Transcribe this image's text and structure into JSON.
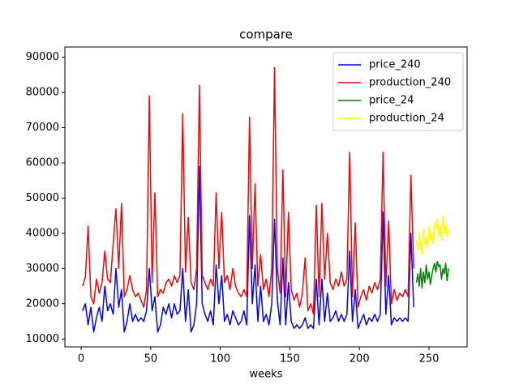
{
  "chart_data": {
    "type": "line",
    "title": "compare",
    "xlabel": "weeks",
    "xlim": [
      -11.7,
      277.4
    ],
    "ylim": [
      7760,
      92900
    ],
    "xticks": [
      0,
      50,
      100,
      150,
      200,
      250
    ],
    "yticks": [
      10000,
      20000,
      30000,
      40000,
      50000,
      60000,
      70000,
      80000,
      90000
    ],
    "legend": "upper right",
    "series": [
      {
        "name": "price_240",
        "color": "#0000ff",
        "x": [
          1,
          3,
          5,
          7,
          9,
          11,
          13,
          15,
          17,
          19,
          21,
          23,
          25,
          27,
          29,
          31,
          33,
          35,
          37,
          39,
          41,
          43,
          45,
          47,
          49,
          51,
          53,
          55,
          57,
          59,
          61,
          63,
          65,
          67,
          69,
          71,
          73,
          75,
          77,
          79,
          81,
          83,
          85,
          87,
          89,
          91,
          93,
          95,
          97,
          99,
          101,
          103,
          105,
          107,
          109,
          111,
          113,
          115,
          117,
          119,
          121,
          123,
          125,
          127,
          129,
          131,
          133,
          135,
          137,
          139,
          141,
          143,
          145,
          147,
          149,
          151,
          153,
          155,
          157,
          159,
          161,
          163,
          165,
          167,
          169,
          171,
          173,
          175,
          177,
          179,
          181,
          183,
          185,
          187,
          189,
          191,
          193,
          195,
          197,
          199,
          201,
          203,
          205,
          207,
          209,
          211,
          213,
          215,
          217,
          219,
          221,
          223,
          225,
          227,
          229,
          231,
          233,
          235,
          237,
          239
        ],
        "values": [
          18000,
          20000,
          14000,
          19000,
          12000,
          16000,
          19000,
          15000,
          25000,
          18000,
          20000,
          17000,
          30000,
          19000,
          24000,
          12000,
          15000,
          20000,
          15000,
          17000,
          15000,
          16000,
          15000,
          18000,
          30000,
          18000,
          22000,
          12000,
          14000,
          19000,
          17000,
          20000,
          16000,
          20000,
          17000,
          18000,
          30000,
          15000,
          24000,
          12000,
          14000,
          20000,
          59000,
          20000,
          17000,
          15000,
          18000,
          14000,
          31000,
          20000,
          28000,
          15000,
          17000,
          14000,
          18000,
          16000,
          14000,
          15000,
          18000,
          14000,
          45000,
          20000,
          31000,
          15000,
          25000,
          15000,
          17000,
          14000,
          20000,
          44000,
          21000,
          14000,
          33000,
          14000,
          26000,
          15000,
          13000,
          14000,
          13000,
          14000,
          16000,
          13000,
          14000,
          13000,
          27000,
          14000,
          27000,
          15000,
          23000,
          15000,
          16000,
          18000,
          15000,
          17000,
          15000,
          17000,
          35000,
          15000,
          24000,
          13000,
          15000,
          17000,
          14000,
          16000,
          15000,
          17000,
          15000,
          17000,
          46000,
          17000,
          28000,
          14000,
          16000,
          15000,
          16000,
          15000,
          16000,
          15000,
          40000,
          19000
        ]
      },
      {
        "name": "production_240",
        "color": "#ff0000",
        "x": [
          1,
          3,
          5,
          7,
          9,
          11,
          13,
          15,
          17,
          19,
          21,
          23,
          25,
          27,
          29,
          31,
          33,
          35,
          37,
          39,
          41,
          43,
          45,
          47,
          49,
          51,
          53,
          55,
          57,
          59,
          61,
          63,
          65,
          67,
          69,
          71,
          73,
          75,
          77,
          79,
          81,
          83,
          85,
          87,
          89,
          91,
          93,
          95,
          97,
          99,
          101,
          103,
          105,
          107,
          109,
          111,
          113,
          115,
          117,
          119,
          121,
          123,
          125,
          127,
          129,
          131,
          133,
          135,
          137,
          139,
          141,
          143,
          145,
          147,
          149,
          151,
          153,
          155,
          157,
          159,
          161,
          163,
          165,
          167,
          169,
          171,
          173,
          175,
          177,
          179,
          181,
          183,
          185,
          187,
          189,
          191,
          193,
          195,
          197,
          199,
          201,
          203,
          205,
          207,
          209,
          211,
          213,
          215,
          217,
          219,
          221,
          223,
          225,
          227,
          229,
          231,
          233,
          235,
          237,
          239
        ],
        "values": [
          25000,
          27500,
          42000,
          22000,
          20000,
          27000,
          23000,
          26000,
          35000,
          27000,
          26000,
          37000,
          47000,
          30000,
          48500,
          22000,
          24000,
          28000,
          24000,
          22000,
          23000,
          21000,
          19000,
          24000,
          79000,
          26000,
          51500,
          22000,
          24000,
          23000,
          26000,
          27000,
          25000,
          28000,
          26000,
          28000,
          74000,
          29000,
          44500,
          26000,
          24000,
          30000,
          82000,
          28000,
          26000,
          24000,
          27000,
          25000,
          51500,
          30000,
          46000,
          26000,
          28000,
          24000,
          30000,
          25000,
          23000,
          22000,
          24000,
          22000,
          73000,
          30000,
          54000,
          25000,
          34000,
          24000,
          27000,
          22000,
          30000,
          87000,
          30000,
          23000,
          58000,
          22000,
          46000,
          24000,
          21000,
          23000,
          19000,
          23000,
          33000,
          18000,
          20000,
          17000,
          48000,
          22000,
          48500,
          27000,
          40000,
          26000,
          24000,
          27000,
          25000,
          29000,
          25000,
          27000,
          63000,
          22000,
          43000,
          19000,
          22000,
          24000,
          21000,
          25000,
          23000,
          26000,
          24000,
          27000,
          63000,
          25000,
          43500,
          20000,
          24000,
          21000,
          23000,
          22000,
          24000,
          22000,
          56500,
          30000
        ]
      },
      {
        "name": "price_24",
        "color": "#008000",
        "x": [
          241,
          242,
          243,
          244,
          245,
          246,
          247,
          248,
          249,
          250,
          251,
          252,
          253,
          254,
          255,
          256,
          257,
          258,
          259,
          260,
          261,
          262,
          263,
          264
        ],
        "values": [
          26000,
          28500,
          25000,
          30000,
          24500,
          29000,
          26000,
          31000,
          27000,
          29000,
          25500,
          28000,
          30000,
          31500,
          29000,
          32000,
          30500,
          31000,
          27000,
          30000,
          28500,
          31500,
          26500,
          30000
        ]
      },
      {
        "name": "production_24",
        "color": "#ffff00",
        "x": [
          241,
          242,
          243,
          244,
          245,
          246,
          247,
          248,
          249,
          250,
          251,
          252,
          253,
          254,
          255,
          256,
          257,
          258,
          259,
          260,
          261,
          262,
          263,
          264
        ],
        "values": [
          38000,
          35000,
          40000,
          36000,
          34000,
          41000,
          37000,
          39000,
          35500,
          42000,
          38000,
          40000,
          37000,
          43000,
          41000,
          44000,
          39000,
          42000,
          38000,
          45000,
          40000,
          43000,
          39000,
          41000
        ]
      }
    ]
  }
}
